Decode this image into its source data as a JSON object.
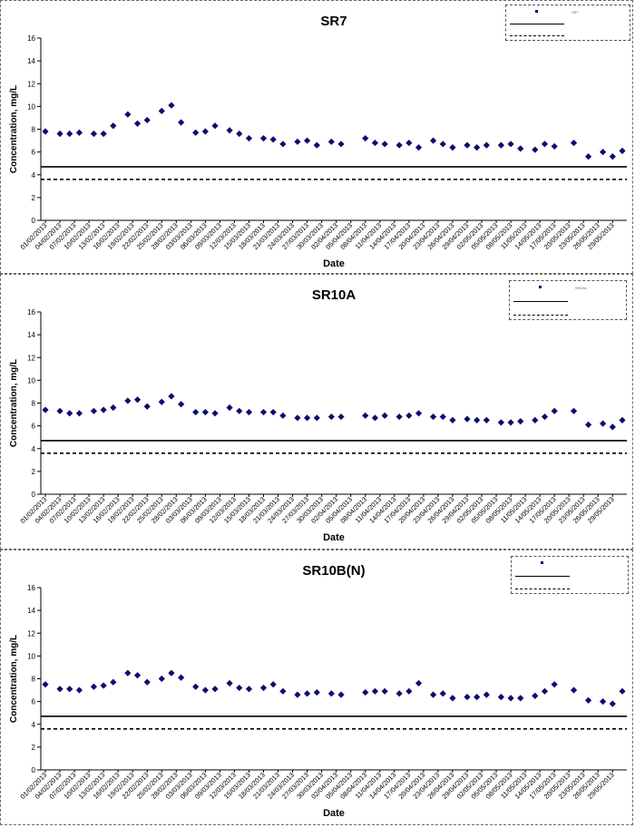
{
  "chart_data": [
    {
      "type": "scatter",
      "title": "SR7",
      "xlabel": "Date",
      "ylabel": "Concentration, mg/L",
      "ylim": [
        0,
        16
      ],
      "yticks": [
        0,
        2,
        4,
        6,
        8,
        10,
        12,
        14,
        16
      ],
      "grid": false,
      "legend_position": "top-right",
      "x_tick_labels": [
        "01/02/2013",
        "04/02/2013",
        "07/02/2013",
        "10/02/2013",
        "13/02/2013",
        "16/02/2013",
        "19/02/2013",
        "22/02/2013",
        "25/02/2013",
        "28/02/2013",
        "03/03/2013",
        "06/03/2013",
        "09/03/2013",
        "12/03/2013",
        "15/03/2013",
        "18/03/2013",
        "21/03/2013",
        "24/03/2013",
        "27/03/2013",
        "30/03/2013",
        "02/04/2013",
        "05/04/2013",
        "08/04/2013",
        "11/04/2013",
        "14/04/2013",
        "17/04/2013",
        "20/04/2013",
        "23/04/2013",
        "26/04/2013",
        "29/04/2013",
        "02/05/2013",
        "05/05/2013",
        "08/05/2013",
        "11/05/2013",
        "14/05/2013",
        "17/05/2013",
        "20/05/2013",
        "23/05/2013",
        "26/05/2013",
        "29/05/2013"
      ],
      "legend": [
        {
          "label": "SR7",
          "style": "marker"
        },
        {
          "label": "",
          "style": "solid"
        },
        {
          "label": "",
          "style": "dashed"
        }
      ],
      "series": [
        {
          "style": "marker",
          "color": "#0c0c6e",
          "x": [
            "01/02/2013",
            "04/02/2013",
            "06/02/2013",
            "08/02/2013",
            "11/02/2013",
            "13/02/2013",
            "15/02/2013",
            "18/02/2013",
            "20/02/2013",
            "22/02/2013",
            "25/02/2013",
            "27/02/2013",
            "01/03/2013",
            "04/03/2013",
            "06/03/2013",
            "08/03/2013",
            "11/03/2013",
            "13/03/2013",
            "15/03/2013",
            "18/03/2013",
            "20/03/2013",
            "22/03/2013",
            "25/03/2013",
            "27/03/2013",
            "29/03/2013",
            "01/04/2013",
            "03/04/2013",
            "08/04/2013",
            "10/04/2013",
            "12/04/2013",
            "15/04/2013",
            "17/04/2013",
            "19/04/2013",
            "22/04/2013",
            "24/04/2013",
            "26/04/2013",
            "29/04/2013",
            "01/05/2013",
            "03/05/2013",
            "06/05/2013",
            "08/05/2013",
            "10/05/2013",
            "13/05/2013",
            "15/05/2013",
            "17/05/2013",
            "21/05/2013",
            "24/05/2013",
            "27/05/2013",
            "29/05/2013",
            "31/05/2013"
          ],
          "y": [
            7.8,
            7.6,
            7.6,
            7.7,
            7.6,
            7.6,
            8.3,
            9.3,
            8.5,
            8.8,
            9.6,
            10.1,
            8.6,
            7.7,
            7.8,
            8.3,
            7.9,
            7.6,
            7.2,
            7.2,
            7.1,
            6.7,
            6.9,
            7.0,
            6.6,
            6.9,
            6.7,
            7.2,
            6.8,
            6.7,
            6.6,
            6.8,
            6.4,
            7.0,
            6.7,
            6.4,
            6.6,
            6.4,
            6.6,
            6.6,
            6.7,
            6.3,
            6.2,
            6.7,
            6.5,
            6.8,
            5.6,
            6.0,
            5.6,
            6.1
          ]
        },
        {
          "style": "solid",
          "color": "#000000",
          "x": [
            "01/02/2013",
            "31/05/2013"
          ],
          "y": [
            4.7,
            4.7
          ]
        },
        {
          "style": "dashed",
          "color": "#000000",
          "x": [
            "01/02/2013",
            "31/05/2013"
          ],
          "y": [
            3.6,
            3.6
          ]
        }
      ]
    },
    {
      "type": "scatter",
      "title": "SR10A",
      "xlabel": "Date",
      "ylabel": "Concentration, mg/L",
      "ylim": [
        0,
        16
      ],
      "yticks": [
        0,
        2,
        4,
        6,
        8,
        10,
        12,
        14,
        16
      ],
      "grid": false,
      "legend_position": "top-right",
      "x_tick_labels": [
        "01/02/2013",
        "04/02/2013",
        "07/02/2013",
        "10/02/2013",
        "13/02/2013",
        "16/02/2013",
        "19/02/2013",
        "22/02/2013",
        "25/02/2013",
        "28/02/2013",
        "03/03/2013",
        "06/03/2013",
        "09/03/2013",
        "12/03/2013",
        "15/03/2013",
        "18/03/2013",
        "21/03/2013",
        "24/03/2013",
        "27/03/2013",
        "30/03/2013",
        "02/04/2013",
        "05/04/2013",
        "08/04/2013",
        "11/04/2013",
        "14/04/2013",
        "17/04/2013",
        "20/04/2013",
        "23/04/2013",
        "26/04/2013",
        "29/04/2013",
        "02/05/2013",
        "05/05/2013",
        "08/05/2013",
        "11/05/2013",
        "14/05/2013",
        "17/05/2013",
        "20/05/2013",
        "23/05/2013",
        "26/05/2013",
        "29/05/2013"
      ],
      "legend": [
        {
          "label": "SR10A",
          "style": "marker"
        },
        {
          "label": "",
          "style": "solid"
        },
        {
          "label": "",
          "style": "dashed"
        }
      ],
      "series": [
        {
          "style": "marker",
          "color": "#0c0c6e",
          "x": [
            "01/02/2013",
            "04/02/2013",
            "06/02/2013",
            "08/02/2013",
            "11/02/2013",
            "13/02/2013",
            "15/02/2013",
            "18/02/2013",
            "20/02/2013",
            "22/02/2013",
            "25/02/2013",
            "27/02/2013",
            "01/03/2013",
            "04/03/2013",
            "06/03/2013",
            "08/03/2013",
            "11/03/2013",
            "13/03/2013",
            "15/03/2013",
            "18/03/2013",
            "20/03/2013",
            "22/03/2013",
            "25/03/2013",
            "27/03/2013",
            "29/03/2013",
            "01/04/2013",
            "03/04/2013",
            "08/04/2013",
            "10/04/2013",
            "12/04/2013",
            "15/04/2013",
            "17/04/2013",
            "19/04/2013",
            "22/04/2013",
            "24/04/2013",
            "26/04/2013",
            "29/04/2013",
            "01/05/2013",
            "03/05/2013",
            "06/05/2013",
            "08/05/2013",
            "10/05/2013",
            "13/05/2013",
            "15/05/2013",
            "17/05/2013",
            "21/05/2013",
            "24/05/2013",
            "27/05/2013",
            "29/05/2013",
            "31/05/2013"
          ],
          "y": [
            7.4,
            7.3,
            7.1,
            7.1,
            7.3,
            7.4,
            7.6,
            8.2,
            8.3,
            7.7,
            8.1,
            8.6,
            7.9,
            7.2,
            7.2,
            7.1,
            7.6,
            7.3,
            7.2,
            7.2,
            7.2,
            6.9,
            6.7,
            6.7,
            6.7,
            6.8,
            6.8,
            6.9,
            6.7,
            6.9,
            6.8,
            6.9,
            7.1,
            6.8,
            6.8,
            6.5,
            6.6,
            6.5,
            6.5,
            6.3,
            6.3,
            6.4,
            6.5,
            6.8,
            7.3,
            7.3,
            6.1,
            6.2,
            5.9,
            6.5
          ]
        },
        {
          "style": "solid",
          "color": "#000000",
          "x": [
            "01/02/2013",
            "31/05/2013"
          ],
          "y": [
            4.7,
            4.7
          ]
        },
        {
          "style": "dashed",
          "color": "#000000",
          "x": [
            "01/02/2013",
            "31/05/2013"
          ],
          "y": [
            3.6,
            3.6
          ]
        }
      ]
    },
    {
      "type": "scatter",
      "title": "SR10B(N)",
      "xlabel": "Date",
      "ylabel": "Concentration, mg/L",
      "ylim": [
        0,
        16
      ],
      "yticks": [
        0,
        2,
        4,
        6,
        8,
        10,
        12,
        14,
        16
      ],
      "grid": false,
      "legend_position": "top-right",
      "x_tick_labels": [
        "01/02/2013",
        "04/02/2013",
        "07/02/2013",
        "10/02/2013",
        "13/02/2013",
        "16/02/2013",
        "19/02/2013",
        "22/02/2013",
        "25/02/2013",
        "28/02/2013",
        "03/03/2013",
        "06/03/2013",
        "09/03/2013",
        "12/03/2013",
        "15/03/2013",
        "18/03/2013",
        "21/03/2013",
        "24/03/2013",
        "27/03/2013",
        "30/03/2013",
        "02/04/2013",
        "05/04/2013",
        "08/04/2013",
        "11/04/2013",
        "14/04/2013",
        "17/04/2013",
        "20/04/2013",
        "23/04/2013",
        "26/04/2013",
        "29/04/2013",
        "02/05/2013",
        "05/05/2013",
        "08/05/2013",
        "11/05/2013",
        "14/05/2013",
        "17/05/2013",
        "20/05/2013",
        "23/05/2013",
        "26/05/2013",
        "29/05/2013"
      ],
      "legend": [
        {
          "label": "",
          "style": "marker"
        },
        {
          "label": "",
          "style": "solid"
        },
        {
          "label": "",
          "style": "dashed"
        }
      ],
      "series": [
        {
          "style": "marker",
          "color": "#0c0c6e",
          "x": [
            "01/02/2013",
            "04/02/2013",
            "06/02/2013",
            "08/02/2013",
            "11/02/2013",
            "13/02/2013",
            "15/02/2013",
            "18/02/2013",
            "20/02/2013",
            "22/02/2013",
            "25/02/2013",
            "27/02/2013",
            "01/03/2013",
            "04/03/2013",
            "06/03/2013",
            "08/03/2013",
            "11/03/2013",
            "13/03/2013",
            "15/03/2013",
            "18/03/2013",
            "20/03/2013",
            "22/03/2013",
            "25/03/2013",
            "27/03/2013",
            "29/03/2013",
            "01/04/2013",
            "03/04/2013",
            "08/04/2013",
            "10/04/2013",
            "12/04/2013",
            "15/04/2013",
            "17/04/2013",
            "19/04/2013",
            "22/04/2013",
            "24/04/2013",
            "26/04/2013",
            "29/04/2013",
            "01/05/2013",
            "03/05/2013",
            "06/05/2013",
            "08/05/2013",
            "10/05/2013",
            "13/05/2013",
            "15/05/2013",
            "17/05/2013",
            "21/05/2013",
            "24/05/2013",
            "27/05/2013",
            "29/05/2013",
            "31/05/2013"
          ],
          "y": [
            7.5,
            7.1,
            7.1,
            7.0,
            7.3,
            7.4,
            7.7,
            8.5,
            8.3,
            7.7,
            8.0,
            8.5,
            8.1,
            7.3,
            7.0,
            7.1,
            7.6,
            7.2,
            7.1,
            7.2,
            7.5,
            6.9,
            6.6,
            6.7,
            6.8,
            6.7,
            6.6,
            6.8,
            6.9,
            6.9,
            6.7,
            6.9,
            7.6,
            6.6,
            6.7,
            6.3,
            6.4,
            6.4,
            6.6,
            6.4,
            6.3,
            6.3,
            6.5,
            6.9,
            7.5,
            7.0,
            6.1,
            6.0,
            5.8,
            6.9
          ]
        },
        {
          "style": "solid",
          "color": "#000000",
          "x": [
            "01/02/2013",
            "31/05/2013"
          ],
          "y": [
            4.7,
            4.7
          ]
        },
        {
          "style": "dashed",
          "color": "#000000",
          "x": [
            "01/02/2013",
            "31/05/2013"
          ],
          "y": [
            3.6,
            3.6
          ]
        }
      ]
    }
  ]
}
